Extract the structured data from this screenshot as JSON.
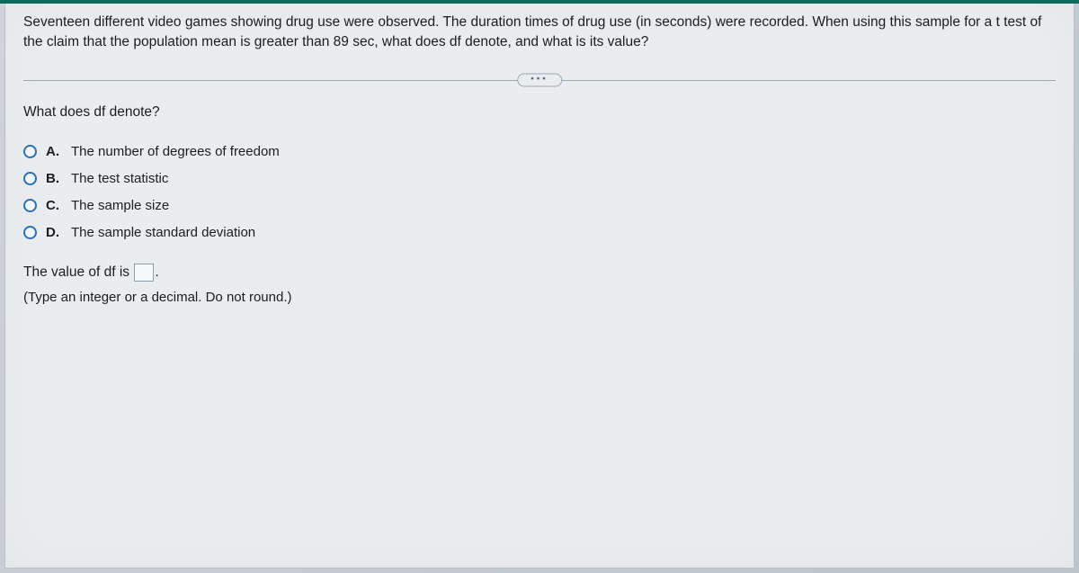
{
  "question_text": "Seventeen different video games showing drug use were observed. The duration times of drug use (in seconds) were recorded. When using this sample for a t test of the claim that the population mean is greater than 89 sec, what does df denote, and what is its value?",
  "divider_label": "•••",
  "sub_question": "What does df denote?",
  "options": [
    {
      "letter": "A.",
      "text": "The number of degrees of freedom"
    },
    {
      "letter": "B.",
      "text": "The test statistic"
    },
    {
      "letter": "C.",
      "text": "The sample size"
    },
    {
      "letter": "D.",
      "text": "The sample standard deviation"
    }
  ],
  "fill_prefix": "The value of df is ",
  "fill_suffix": ".",
  "hint": "(Type an integer or a decimal. Do not round.)",
  "colors": {
    "topbar": "#0d6b5e",
    "card_bg": "#e9edef",
    "radio_border": "#2e6fb0",
    "text": "#1a1e22"
  }
}
